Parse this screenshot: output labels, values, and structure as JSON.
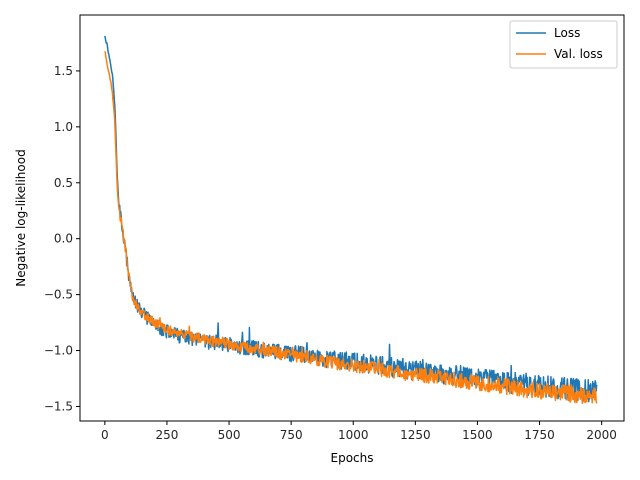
{
  "chart_data": {
    "type": "line",
    "title": "",
    "xlabel": "Epochs",
    "ylabel": "Negative log-likelihood",
    "xlim": [
      -100,
      2090
    ],
    "ylim": [
      -1.63,
      2.0
    ],
    "xticks": [
      0,
      250,
      500,
      750,
      1000,
      1250,
      1500,
      1750,
      2000
    ],
    "xtick_labels": [
      "0",
      "250",
      "500",
      "750",
      "1000",
      "1250",
      "1500",
      "1750",
      "2000"
    ],
    "yticks": [
      -1.5,
      -1.0,
      -0.5,
      0.0,
      0.5,
      1.0,
      1.5
    ],
    "ytick_labels": [
      "−1.5",
      "−1.0",
      "−0.5",
      "0.0",
      "0.5",
      "1.0",
      "1.5"
    ],
    "grid": false,
    "legend_position": "top-right",
    "series": [
      {
        "name": "Loss",
        "color": "#1f77b4",
        "noise": 0.055,
        "x": [
          0,
          10,
          20,
          30,
          40,
          45,
          50,
          55,
          60,
          70,
          80,
          90,
          100,
          110,
          120,
          130,
          150,
          175,
          200,
          225,
          250,
          275,
          300,
          350,
          400,
          450,
          500,
          550,
          600,
          650,
          700,
          750,
          800,
          850,
          900,
          950,
          1000,
          1050,
          1100,
          1150,
          1200,
          1250,
          1300,
          1350,
          1400,
          1450,
          1500,
          1550,
          1600,
          1650,
          1700,
          1750,
          1800,
          1850,
          1900,
          1950,
          1980
        ],
        "y": [
          1.82,
          1.72,
          1.6,
          1.48,
          1.2,
          0.9,
          0.55,
          0.35,
          0.25,
          0.1,
          -0.05,
          -0.22,
          -0.4,
          -0.48,
          -0.55,
          -0.6,
          -0.66,
          -0.72,
          -0.77,
          -0.8,
          -0.83,
          -0.85,
          -0.87,
          -0.9,
          -0.92,
          -0.93,
          -0.95,
          -0.97,
          -0.98,
          -1.0,
          -1.01,
          -1.03,
          -1.04,
          -1.06,
          -1.08,
          -1.09,
          -1.1,
          -1.12,
          -1.13,
          -1.15,
          -1.16,
          -1.18,
          -1.19,
          -1.2,
          -1.22,
          -1.23,
          -1.25,
          -1.26,
          -1.27,
          -1.29,
          -1.3,
          -1.31,
          -1.33,
          -1.34,
          -1.35,
          -1.36,
          -1.37
        ]
      },
      {
        "name": "Val. loss",
        "color": "#ff7f0e",
        "noise": 0.04,
        "x": [
          0,
          10,
          20,
          30,
          40,
          45,
          50,
          55,
          60,
          70,
          80,
          90,
          100,
          110,
          120,
          130,
          150,
          175,
          200,
          225,
          250,
          275,
          300,
          350,
          400,
          450,
          500,
          550,
          600,
          650,
          700,
          750,
          800,
          850,
          900,
          950,
          1000,
          1050,
          1100,
          1150,
          1200,
          1250,
          1300,
          1350,
          1400,
          1450,
          1500,
          1550,
          1600,
          1650,
          1700,
          1750,
          1800,
          1850,
          1900,
          1950,
          1980
        ],
        "y": [
          1.68,
          1.55,
          1.45,
          1.32,
          1.05,
          0.75,
          0.45,
          0.3,
          0.22,
          0.1,
          -0.05,
          -0.2,
          -0.36,
          -0.5,
          -0.56,
          -0.6,
          -0.66,
          -0.71,
          -0.75,
          -0.78,
          -0.81,
          -0.83,
          -0.85,
          -0.88,
          -0.9,
          -0.92,
          -0.94,
          -0.96,
          -0.98,
          -1.0,
          -1.02,
          -1.04,
          -1.06,
          -1.08,
          -1.1,
          -1.12,
          -1.13,
          -1.15,
          -1.17,
          -1.18,
          -1.2,
          -1.21,
          -1.23,
          -1.24,
          -1.26,
          -1.27,
          -1.29,
          -1.3,
          -1.32,
          -1.33,
          -1.35,
          -1.36,
          -1.37,
          -1.38,
          -1.39,
          -1.4,
          -1.41
        ]
      }
    ]
  }
}
